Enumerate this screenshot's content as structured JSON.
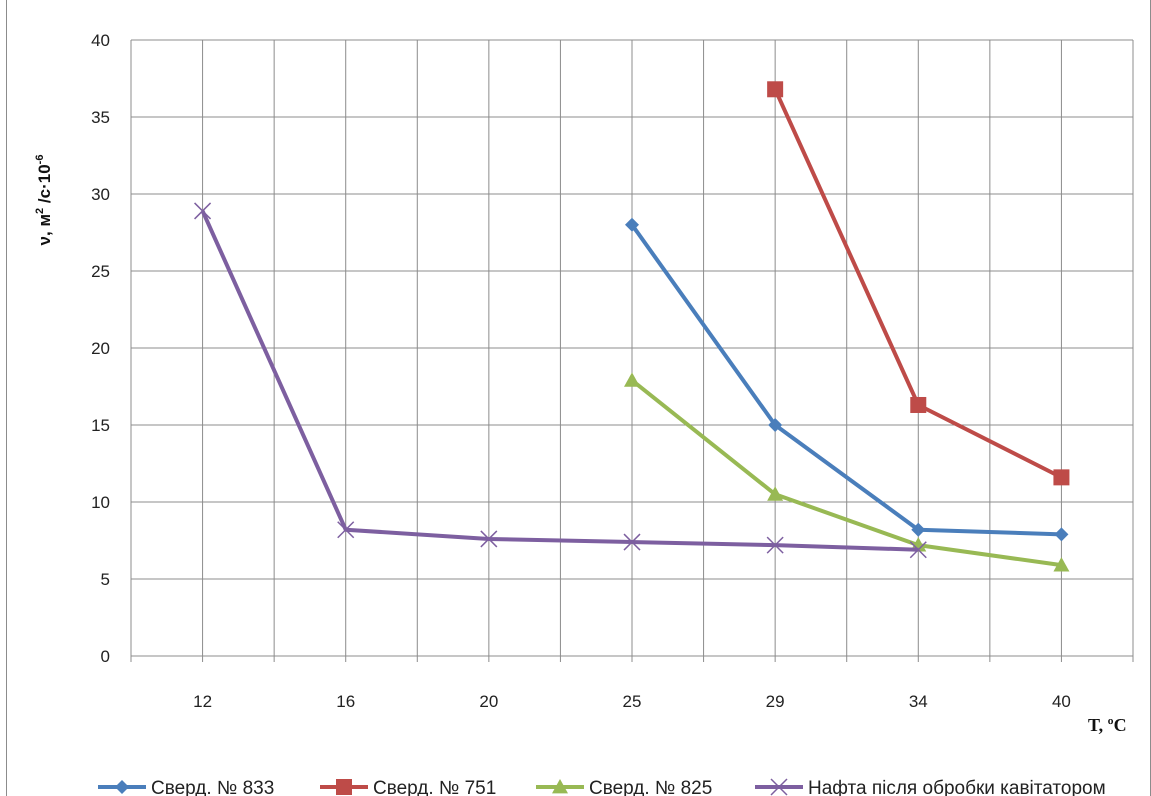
{
  "chart_data": {
    "type": "line",
    "categories": [
      "12",
      "16",
      "20",
      "25",
      "29",
      "34",
      "40"
    ],
    "ylabel_main": "ν, м",
    "ylabel_sup1": "2",
    "ylabel_mid": " /с·10",
    "ylabel_sup2": "-6",
    "xlabel": "T, ºC",
    "ylim": [
      0,
      40
    ],
    "yticks": [
      "0",
      "5",
      "10",
      "15",
      "20",
      "25",
      "30",
      "35",
      "40"
    ],
    "grid": true,
    "legend_position": "bottom",
    "series": [
      {
        "name": "Сверд. № 833",
        "color": "#4a7ebb",
        "marker": "diamond",
        "values": [
          null,
          null,
          null,
          28,
          15,
          8.2,
          7.9
        ]
      },
      {
        "name": "Сверд. № 751",
        "color": "#be4b48",
        "marker": "square",
        "values": [
          null,
          null,
          null,
          null,
          36.8,
          16.3,
          11.6
        ]
      },
      {
        "name": "Сверд. № 825",
        "color": "#98b954",
        "marker": "triangle",
        "values": [
          null,
          null,
          null,
          17.9,
          10.5,
          7.2,
          5.9
        ]
      },
      {
        "name": "Нафта після обробки кавітатором",
        "color": "#7d5fa0",
        "marker": "x",
        "values": [
          28.9,
          8.2,
          7.6,
          7.4,
          7.2,
          6.9,
          null
        ]
      }
    ]
  }
}
